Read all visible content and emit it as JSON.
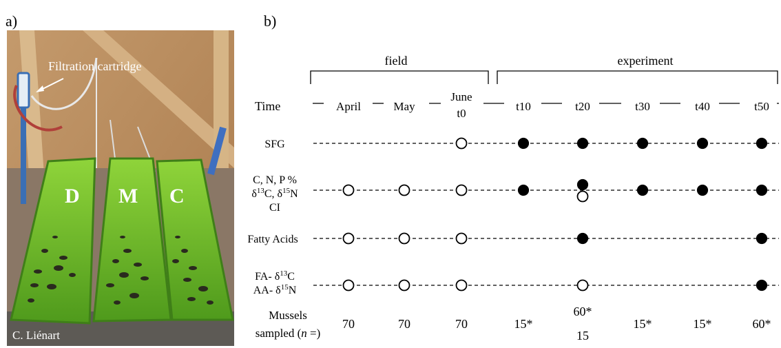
{
  "panels": {
    "a_label": "a)",
    "b_label": "b)"
  },
  "photo": {
    "caption_filtration": "Filtration cartridge",
    "tank_letters": [
      "D",
      "M",
      "C"
    ],
    "credit": "C. Liénart"
  },
  "timeline": {
    "phase_field": "field",
    "phase_experiment": "experiment",
    "time_label": "Time",
    "time_points": [
      {
        "line1": "April",
        "line2": ""
      },
      {
        "line1": "May",
        "line2": ""
      },
      {
        "line1": "June",
        "line2": "t0"
      },
      {
        "line1": "t10",
        "line2": ""
      },
      {
        "line1": "t20",
        "line2": ""
      },
      {
        "line1": "t30",
        "line2": ""
      },
      {
        "line1": "t40",
        "line2": ""
      },
      {
        "line1": "t50",
        "line2": ""
      }
    ]
  },
  "rows": [
    {
      "id": "sfg",
      "lines": [
        [
          "SFG"
        ]
      ],
      "marks": [
        "",
        "",
        "open",
        "filled",
        "filled",
        "filled",
        "filled",
        "filled"
      ]
    },
    {
      "id": "cnp",
      "lines": [
        [
          "C, N, P %"
        ],
        [
          "δ",
          "13",
          "C, δ",
          "15",
          "N"
        ],
        [
          "CI"
        ]
      ],
      "marks": [
        "open",
        "open",
        "open",
        "filled",
        "filled+open",
        "filled",
        "filled",
        "filled"
      ]
    },
    {
      "id": "fatty-acids",
      "lines": [
        [
          "Fatty Acids"
        ]
      ],
      "marks": [
        "open",
        "open",
        "open",
        "",
        "filled",
        "",
        "",
        "filled"
      ]
    },
    {
      "id": "csia",
      "lines": [
        [
          "FA- δ",
          "13",
          "C"
        ],
        [
          "AA- δ",
          "15",
          "N"
        ]
      ],
      "marks": [
        "open",
        "open",
        "open",
        "",
        "open",
        "",
        "",
        "filled"
      ]
    }
  ],
  "mussels": {
    "label_line1": "Mussels",
    "label_line2_pre": "sampled (",
    "label_line2_n": "n",
    "label_line2_post": " =)",
    "values": [
      "70",
      "70",
      "70",
      "15*",
      "60*",
      "15*",
      "15*",
      "60*"
    ],
    "t20_second": "15"
  }
}
